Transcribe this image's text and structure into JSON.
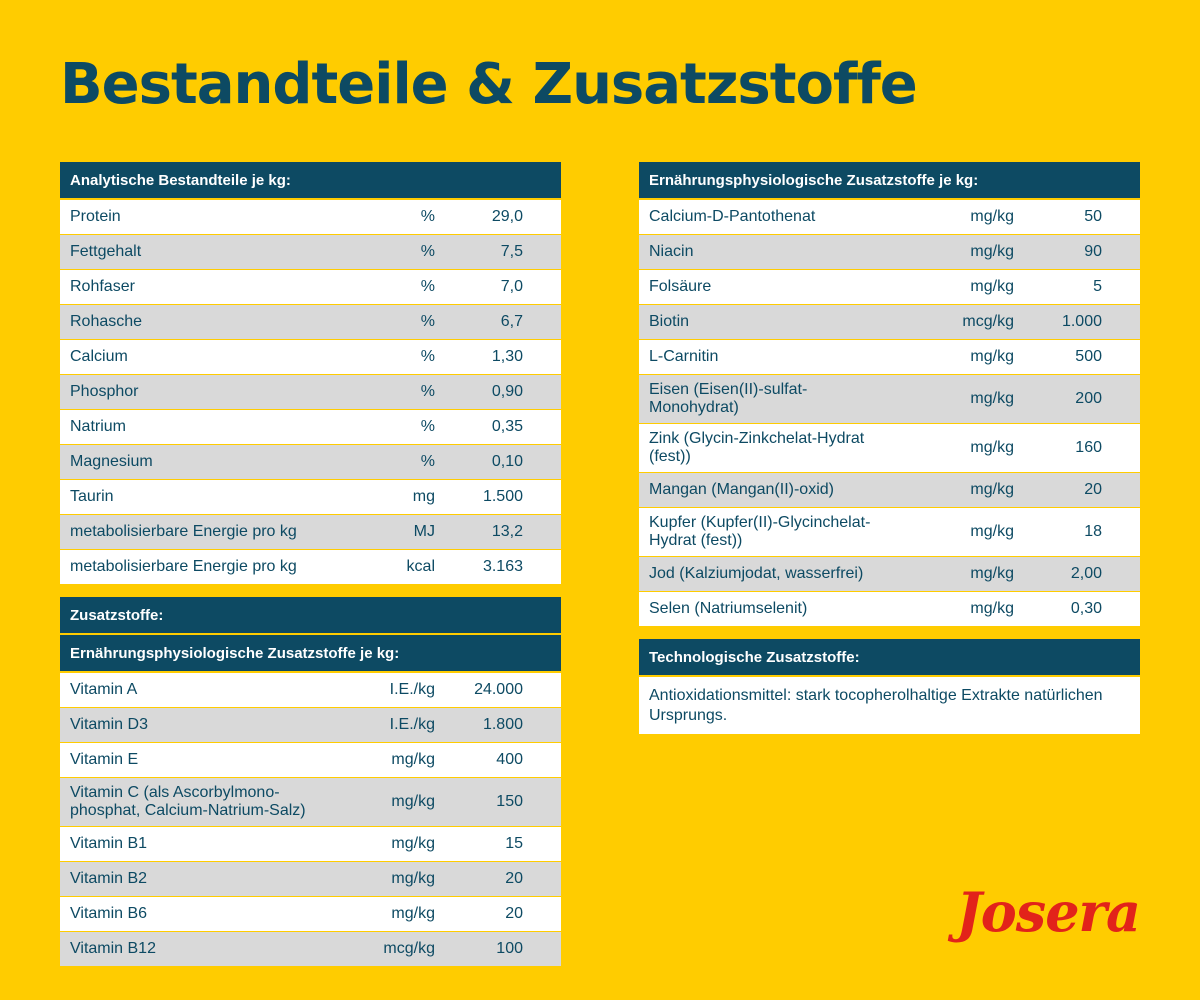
{
  "title": "Bestandteile & Zusatzstoffe",
  "columns": [
    [
      {
        "header": "Analytische Bestandteile je kg:",
        "rows": [
          [
            "Protein",
            "%",
            "29,0"
          ],
          [
            "Fettgehalt",
            "%",
            "7,5"
          ],
          [
            "Rohfaser",
            "%",
            "7,0"
          ],
          [
            "Rohasche",
            "%",
            "6,7"
          ],
          [
            "Calcium",
            "%",
            "1,30"
          ],
          [
            "Phosphor",
            "%",
            "0,90"
          ],
          [
            "Natrium",
            "%",
            "0,35"
          ],
          [
            "Magnesium",
            "%",
            "0,10"
          ],
          [
            "Taurin",
            "mg",
            "1.500"
          ],
          [
            "metabolisierbare Energie pro kg",
            "MJ",
            "13,2"
          ],
          [
            "metabolisierbare Energie pro kg",
            "kcal",
            "3.163"
          ]
        ]
      },
      {
        "header": "Zusatzstoffe:",
        "subheader": "Ernährungsphysiologische Zusatzstoffe je kg:",
        "rows": [
          [
            "Vitamin A",
            "I.E./kg",
            "24.000"
          ],
          [
            "Vitamin D3",
            "I.E./kg",
            "1.800"
          ],
          [
            "Vitamin E",
            "mg/kg",
            "400"
          ],
          [
            "Vitamin C (als Ascorbylmono-\nphosphat, Calcium-Natrium-Salz)",
            "mg/kg",
            "150"
          ],
          [
            "Vitamin B1",
            "mg/kg",
            "15"
          ],
          [
            "Vitamin B2",
            "mg/kg",
            "20"
          ],
          [
            "Vitamin B6",
            "mg/kg",
            "20"
          ],
          [
            "Vitamin B12",
            "mcg/kg",
            "100"
          ]
        ]
      }
    ],
    [
      {
        "header": "Ernährungsphysiologische Zusatzstoffe je kg:",
        "rows": [
          [
            "Calcium-D-Pantothenat",
            "mg/kg",
            "50"
          ],
          [
            "Niacin",
            "mg/kg",
            "90"
          ],
          [
            "Folsäure",
            "mg/kg",
            "5"
          ],
          [
            "Biotin",
            "mcg/kg",
            "1.000"
          ],
          [
            "L-Carnitin",
            "mg/kg",
            "500"
          ],
          [
            "Eisen (Eisen(II)-sulfat-Monohydrat)",
            "mg/kg",
            "200"
          ],
          [
            "Zink (Glycin-Zinkchelat-Hydrat (fest))",
            "mg/kg",
            "160"
          ],
          [
            "Mangan (Mangan(II)-oxid)",
            "mg/kg",
            "20"
          ],
          [
            "Kupfer (Kupfer(II)-Glycinchelat-\nHydrat (fest))",
            "mg/kg",
            "18"
          ],
          [
            "Jod (Kalziumjodat, wasserfrei)",
            "mg/kg",
            "2,00"
          ],
          [
            "Selen (Natriumselenit)",
            "mg/kg",
            "0,30"
          ]
        ]
      },
      {
        "header": "Technologische Zusatzstoffe:",
        "text": "Antioxidationsmittel: stark tocopherolhaltige Extrakte natürlichen Ursprungs."
      }
    ]
  ],
  "logo": "Josera"
}
